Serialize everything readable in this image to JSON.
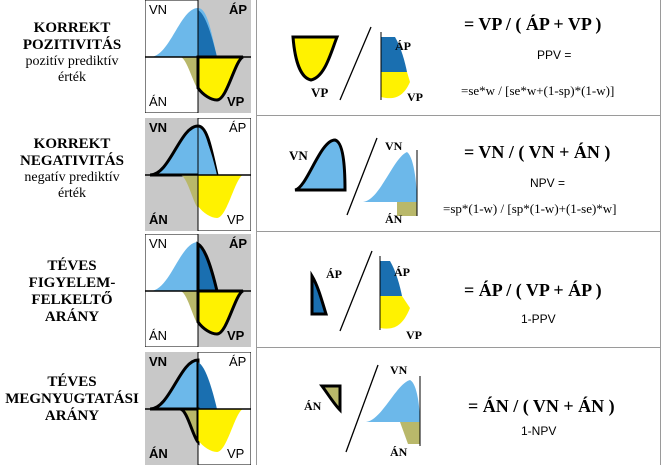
{
  "rows": [
    {
      "title": "KORREKT POZITIVITÁS",
      "title_lines": [
        "KORREKT",
        "POZITIVITÁS"
      ],
      "subtitle_lines": [
        "pozitív prediktív",
        "érték"
      ],
      "quad": {
        "tl": "VN",
        "tr": "ÁP",
        "bl": "ÁN",
        "br": "VP"
      },
      "left_shape_label": "VP",
      "right_labels": [
        "ÁP",
        "VP"
      ],
      "equation": "= VP / ( ÁP + VP )",
      "sub": "PPV =",
      "formula": "=se*w / [se*w+(1-sp)*(1-w)]"
    },
    {
      "title": "KORREKT NEGATIVITÁS",
      "title_lines": [
        "KORREKT",
        "NEGATIVITÁS"
      ],
      "subtitle_lines": [
        "negatív prediktív",
        "érték"
      ],
      "quad": {
        "tl": "VN",
        "tr": "ÁP",
        "bl": "ÁN",
        "br": "VP"
      },
      "left_shape_label": "VN",
      "right_labels": [
        "VN",
        "ÁN"
      ],
      "equation": "= VN / ( VN + ÁN )",
      "sub": "NPV =",
      "formula": "=sp*(1-w) / [sp*(1-w)+(1-se)*w]"
    },
    {
      "title": "TÉVES FIGYELEM-FELKELTŐ ARÁNY",
      "title_lines": [
        "TÉVES",
        "FIGYELEM-",
        "FELKELTŐ",
        "ARÁNY"
      ],
      "subtitle_lines": [],
      "quad": {
        "tl": "VN",
        "tr": "ÁP",
        "bl": "ÁN",
        "br": "VP"
      },
      "left_shape_label": "ÁP",
      "right_labels": [
        "ÁP",
        "VP"
      ],
      "equation": "= ÁP / ( VP + ÁP )",
      "sub": "1-PPV",
      "formula": ""
    },
    {
      "title": "TÉVES MEGNYUGTATÁSI ARÁNY",
      "title_lines": [
        "TÉVES",
        "MEGNYUGTATÁSI",
        "ARÁNY"
      ],
      "subtitle_lines": [],
      "quad": {
        "tl": "VN",
        "tr": "ÁP",
        "bl": "ÁN",
        "br": "VP"
      },
      "left_shape_label": "ÁN",
      "right_labels": [
        "VN",
        "ÁN"
      ],
      "equation": "= ÁN / ( VN + ÁN )",
      "sub": "1-NPV",
      "formula": ""
    }
  ],
  "colors": {
    "blue": "#6cb8ea",
    "dark_blue": "#1a6fb0",
    "yellow": "#fff200",
    "olive": "#b9b86a",
    "gray": "#c8c8c8"
  }
}
